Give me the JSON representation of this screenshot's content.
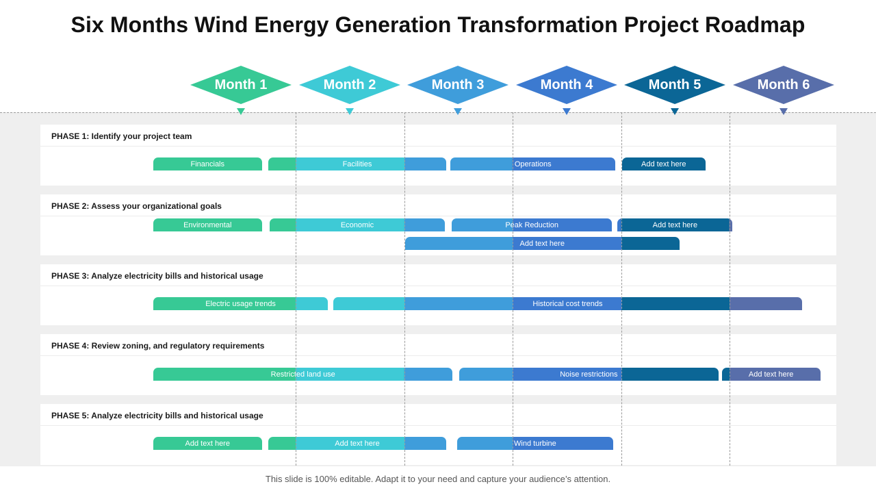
{
  "title": "Six Months Wind Energy Generation Transformation Project Roadmap",
  "footer": "This slide is 100% editable. Adapt it to your need and capture your audience’s attention.",
  "colors": {
    "month1": "#37c995",
    "month2": "#3ecad6",
    "month3": "#3f9ddb",
    "month4": "#3c7ad0",
    "month5": "#0b6696",
    "month6": "#586eaa"
  },
  "months": [
    {
      "label": "Month 1",
      "color": "#37c995"
    },
    {
      "label": "Month 2",
      "color": "#3ecad6"
    },
    {
      "label": "Month 3",
      "color": "#3f9ddb"
    },
    {
      "label": "Month 4",
      "color": "#3c7ad0"
    },
    {
      "label": "Month 5",
      "color": "#0b6696"
    },
    {
      "label": "Month 6",
      "color": "#586eaa"
    }
  ],
  "phases": [
    {
      "title": "PHASE 1: Identify your project team",
      "tasks": [
        {
          "label": "Financials",
          "start": 1.0,
          "end": 2.0,
          "lane": 0
        },
        {
          "label": "Facilities",
          "start": 2.06,
          "end": 3.7,
          "lane": 0
        },
        {
          "label": "Operations",
          "start": 3.74,
          "end": 5.26,
          "lane": 0
        },
        {
          "label": "Add text here",
          "start": 5.32,
          "end": 6.09,
          "lane": 0
        }
      ]
    },
    {
      "title": "PHASE 2: Assess your organizational  goals",
      "tasks": [
        {
          "label": "Environmental",
          "start": 1.0,
          "end": 2.0,
          "lane": 0
        },
        {
          "label": "Economic",
          "start": 2.07,
          "end": 3.69,
          "lane": 0
        },
        {
          "label": "Peak Reduction",
          "start": 3.75,
          "end": 5.23,
          "lane": 0
        },
        {
          "label": "Add text here",
          "start": 5.28,
          "end": 6.34,
          "lane": 0
        },
        {
          "label": "Add text here",
          "start": 3.32,
          "end": 5.85,
          "lane": 1
        }
      ]
    },
    {
      "title": "PHASE 3: Analyze electricity bills and historical usage",
      "tasks": [
        {
          "label": "Electric usage trends",
          "start": 1.0,
          "end": 2.61,
          "lane": 0
        },
        {
          "label": "Historical  cost trends",
          "start": 2.66,
          "end": 6.98,
          "lane": 0
        }
      ]
    },
    {
      "title": "PHASE 4: Review zoning, and regulatory requirements",
      "tasks": [
        {
          "label": "Restricted land use",
          "start": 1.0,
          "end": 3.76,
          "lane": 0
        },
        {
          "label": "Noise restrictions",
          "start": 3.82,
          "end": 6.21,
          "lane": 0
        },
        {
          "label": "Add text here",
          "start": 6.24,
          "end": 7.15,
          "lane": 0
        }
      ]
    },
    {
      "title": "PHASE 5: Analyze electricity bills and historical usage",
      "tasks": [
        {
          "label": "Add text here",
          "start": 1.0,
          "end": 2.0,
          "lane": 0
        },
        {
          "label": "Add text here",
          "start": 2.06,
          "end": 3.7,
          "lane": 0
        },
        {
          "label": "Wind turbine",
          "start": 3.8,
          "end": 5.24,
          "lane": 0
        }
      ]
    }
  ]
}
